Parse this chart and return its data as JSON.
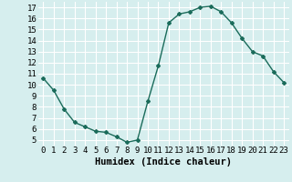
{
  "x": [
    0,
    1,
    2,
    3,
    4,
    5,
    6,
    7,
    8,
    9,
    10,
    11,
    12,
    13,
    14,
    15,
    16,
    17,
    18,
    19,
    20,
    21,
    22,
    23
  ],
  "y": [
    10.6,
    9.5,
    7.8,
    6.6,
    6.2,
    5.8,
    5.7,
    5.3,
    4.8,
    5.0,
    8.5,
    11.7,
    15.6,
    16.4,
    16.6,
    17.0,
    17.1,
    16.6,
    15.6,
    14.2,
    13.0,
    12.6,
    11.2,
    10.2
  ],
  "line_color": "#1a6b5a",
  "marker": "D",
  "marker_size": 2,
  "bg_color": "#d6eeee",
  "grid_color": "#ffffff",
  "xlabel": "Humidex (Indice chaleur)",
  "xlim": [
    -0.5,
    23.5
  ],
  "ylim": [
    4.5,
    17.5
  ],
  "xticks": [
    0,
    1,
    2,
    3,
    4,
    5,
    6,
    7,
    8,
    9,
    10,
    11,
    12,
    13,
    14,
    15,
    16,
    17,
    18,
    19,
    20,
    21,
    22,
    23
  ],
  "yticks": [
    5,
    6,
    7,
    8,
    9,
    10,
    11,
    12,
    13,
    14,
    15,
    16,
    17
  ],
  "tick_fontsize": 6.5,
  "label_fontsize": 7.5,
  "line_width": 1.0
}
